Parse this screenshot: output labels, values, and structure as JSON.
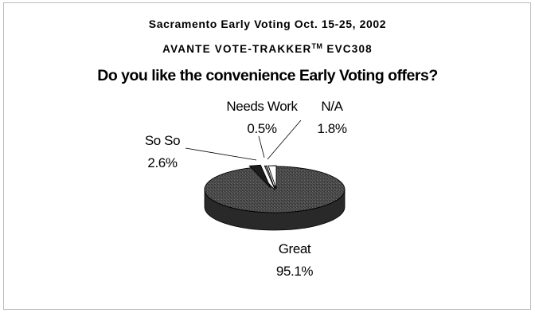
{
  "chart_data": {
    "type": "pie",
    "title": "Sacramento Early Voting Oct. 15-25, 2002",
    "subtitle_main": "AVANTE VOTE-TRAKKER",
    "subtitle_sup": "TM",
    "subtitle_model": "EVC308",
    "question": "Do you like the convenience Early Voting offers?",
    "style": "3d",
    "slices": [
      {
        "label": "Great",
        "value": 95.1,
        "value_label": "95.1%",
        "color": "#4a4a4a"
      },
      {
        "label": "So So",
        "value": 2.6,
        "value_label": "2.6%",
        "color": "#1c1c1c"
      },
      {
        "label": "Needs Work",
        "value": 0.5,
        "value_label": "0.5%",
        "color": "#8a8a8a"
      },
      {
        "label": "N/A",
        "value": 1.8,
        "value_label": "1.8%",
        "color": "#ffffff"
      }
    ]
  }
}
